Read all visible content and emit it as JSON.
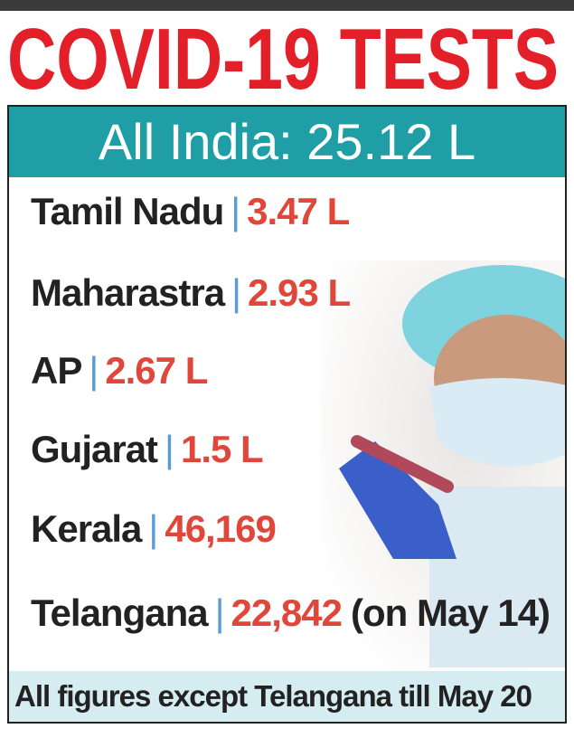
{
  "header": {
    "title": "COVID-19 TESTS"
  },
  "banner": "All India: 25.12 L",
  "rows": [
    {
      "state": "Tamil Nadu",
      "value": "3.47 L"
    },
    {
      "state": "Maharastra",
      "value": "2.93 L"
    },
    {
      "state": "AP",
      "value": "2.67 L"
    },
    {
      "state": "Gujarat",
      "value": "1.5 L"
    },
    {
      "state": "Kerala",
      "value": "46,169"
    },
    {
      "state": "Telangana",
      "value": "22,842",
      "note": "(on May 14)"
    }
  ],
  "footer": "All figures except Telangana till May 20"
}
